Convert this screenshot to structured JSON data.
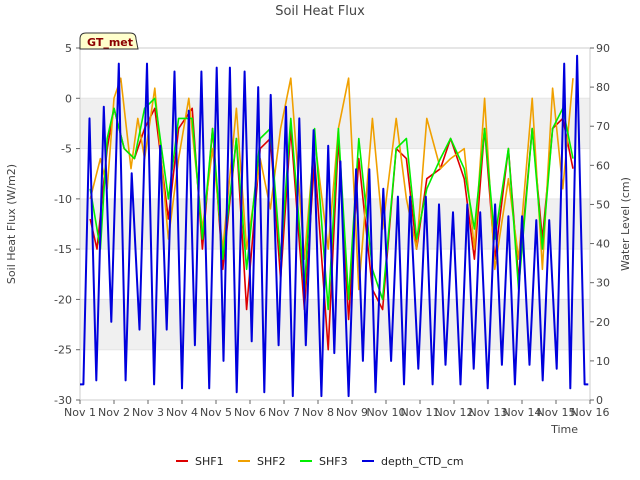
{
  "chart_data": {
    "type": "line",
    "title": "Soil Heat Flux",
    "station_badge": "GT_met",
    "xlabel": "Time",
    "ylabel": "Soil Heat Flux (W/m2)",
    "y2label": "Water Level (cm)",
    "x_ticks": [
      "Nov 1",
      "Nov 2",
      "Nov 3",
      "Nov 4",
      "Nov 5",
      "Nov 6",
      "Nov 7",
      "Nov 8",
      "Nov 9",
      "Nov 10",
      "Nov 11",
      "Nov 12",
      "Nov 13",
      "Nov 14",
      "Nov 15",
      "Nov 16"
    ],
    "y_ticks": [
      5,
      0,
      -5,
      -10,
      -15,
      -20,
      -25,
      -30
    ],
    "y2_ticks": [
      90,
      80,
      70,
      60,
      50,
      40,
      30,
      20,
      10,
      0
    ],
    "xlim": [
      0,
      15
    ],
    "ylim": [
      -30,
      5
    ],
    "y2lim": [
      0,
      90
    ],
    "legend_position": "bottom",
    "series": [
      {
        "name": "SHF1",
        "axis": "left",
        "color": "#dd0000",
        "x": [
          0.3,
          0.5,
          0.8,
          1.0,
          1.3,
          1.6,
          1.9,
          2.2,
          2.6,
          2.9,
          3.3,
          3.6,
          3.9,
          4.2,
          4.6,
          4.9,
          5.3,
          5.6,
          5.9,
          6.2,
          6.6,
          6.9,
          7.3,
          7.6,
          7.9,
          8.2,
          8.6,
          8.9,
          9.3,
          9.6,
          9.9,
          10.2,
          10.6,
          10.9,
          11.3,
          11.6,
          11.9,
          12.2,
          12.6,
          12.9,
          13.3,
          13.6,
          13.9,
          14.2,
          14.5
        ],
        "y": [
          -12,
          -15,
          -5,
          -1,
          -5,
          -6,
          -3,
          -1,
          -12,
          -3,
          -1,
          -15,
          -3,
          -17,
          -4,
          -21,
          -5,
          -4,
          -18,
          -3,
          -21,
          -6,
          -25,
          -4,
          -22,
          -6,
          -19,
          -21,
          -5,
          -6,
          -15,
          -8,
          -7,
          -4,
          -8,
          -16,
          -3,
          -16,
          -5,
          -18,
          -3,
          -14,
          -3,
          -2,
          -7
        ]
      },
      {
        "name": "SHF2",
        "axis": "left",
        "color": "#f0a000",
        "x": [
          0.3,
          0.6,
          0.8,
          1.0,
          1.2,
          1.5,
          1.7,
          1.9,
          2.2,
          2.6,
          2.9,
          3.2,
          3.6,
          3.9,
          4.2,
          4.6,
          4.9,
          5.3,
          5.6,
          5.9,
          6.2,
          6.6,
          6.9,
          7.3,
          7.6,
          7.9,
          8.2,
          8.6,
          8.9,
          9.3,
          9.6,
          9.9,
          10.2,
          10.6,
          10.9,
          11.3,
          11.6,
          11.9,
          12.2,
          12.6,
          12.9,
          13.3,
          13.6,
          13.9,
          14.2,
          14.5
        ],
        "y": [
          -10,
          -6,
          -9,
          0,
          2,
          -7,
          -2,
          -6,
          1,
          -14,
          -6,
          0,
          -13,
          -5,
          -15,
          -1,
          -15,
          -6,
          -11,
          -3,
          2,
          -16,
          -4,
          -15,
          -3,
          2,
          -19,
          -2,
          -13,
          -2,
          -10,
          -15,
          -2,
          -7,
          -6,
          -5,
          -15,
          0,
          -17,
          -8,
          -16,
          0,
          -17,
          1,
          -9,
          2
        ]
      },
      {
        "name": "SHF3",
        "axis": "left",
        "color": "#00ee00",
        "x": [
          0.3,
          0.6,
          0.8,
          1.0,
          1.3,
          1.6,
          1.9,
          2.2,
          2.6,
          2.9,
          3.3,
          3.6,
          3.9,
          4.2,
          4.6,
          4.9,
          5.3,
          5.6,
          5.9,
          6.2,
          6.6,
          6.9,
          7.3,
          7.6,
          7.9,
          8.2,
          8.6,
          8.9,
          9.3,
          9.6,
          9.9,
          10.2,
          10.6,
          10.9,
          11.3,
          11.6,
          11.9,
          12.2,
          12.6,
          12.9,
          13.3,
          13.6,
          13.9,
          14.2,
          14.5
        ],
        "y": [
          -9,
          -15,
          -4,
          -1,
          -5,
          -6,
          -1,
          0,
          -10,
          -2,
          -2,
          -14,
          -3,
          -16,
          -4,
          -17,
          -4,
          -3,
          -16,
          -2,
          -19,
          -3,
          -21,
          -3,
          -20,
          -4,
          -17,
          -20,
          -5,
          -4,
          -14,
          -9,
          -6,
          -4,
          -7,
          -13,
          -3,
          -14,
          -5,
          -19,
          -3,
          -15,
          -3,
          -1,
          -6
        ]
      },
      {
        "name": "depth_CTD_cm",
        "axis": "right",
        "color": "#0000dd",
        "x": [
          0.0,
          0.1,
          0.28,
          0.48,
          0.7,
          0.92,
          1.14,
          1.34,
          1.52,
          1.75,
          1.97,
          2.18,
          2.36,
          2.55,
          2.78,
          3.0,
          3.2,
          3.38,
          3.57,
          3.8,
          4.02,
          4.22,
          4.41,
          4.61,
          4.84,
          5.05,
          5.24,
          5.42,
          5.61,
          5.84,
          6.06,
          6.26,
          6.45,
          6.64,
          6.87,
          7.1,
          7.3,
          7.48,
          7.66,
          7.9,
          8.12,
          8.32,
          8.51,
          8.69,
          8.92,
          9.15,
          9.35,
          9.53,
          9.71,
          9.95,
          10.17,
          10.37,
          10.56,
          10.75,
          10.97,
          11.19,
          11.39,
          11.58,
          11.77,
          11.99,
          12.21,
          12.41,
          12.6,
          12.79,
          13.0,
          13.22,
          13.42,
          13.61,
          13.8,
          14.02,
          14.24,
          14.42,
          14.62,
          14.84,
          14.95
        ],
        "y": [
          4,
          4,
          72,
          5,
          75,
          20,
          86,
          5,
          58,
          18,
          86,
          4,
          65,
          18,
          84,
          3,
          74,
          14,
          84,
          3,
          85,
          10,
          85,
          2,
          84,
          15,
          80,
          2,
          78,
          14,
          75,
          1,
          72,
          14,
          69,
          1,
          65,
          12,
          61,
          1,
          59,
          10,
          59,
          2,
          54,
          10,
          52,
          4,
          52,
          8,
          52,
          4,
          50,
          9,
          48,
          4,
          50,
          8,
          48,
          3,
          50,
          9,
          47,
          4,
          47,
          9,
          46,
          5,
          46,
          8,
          86,
          3,
          88,
          4,
          4
        ]
      }
    ]
  }
}
